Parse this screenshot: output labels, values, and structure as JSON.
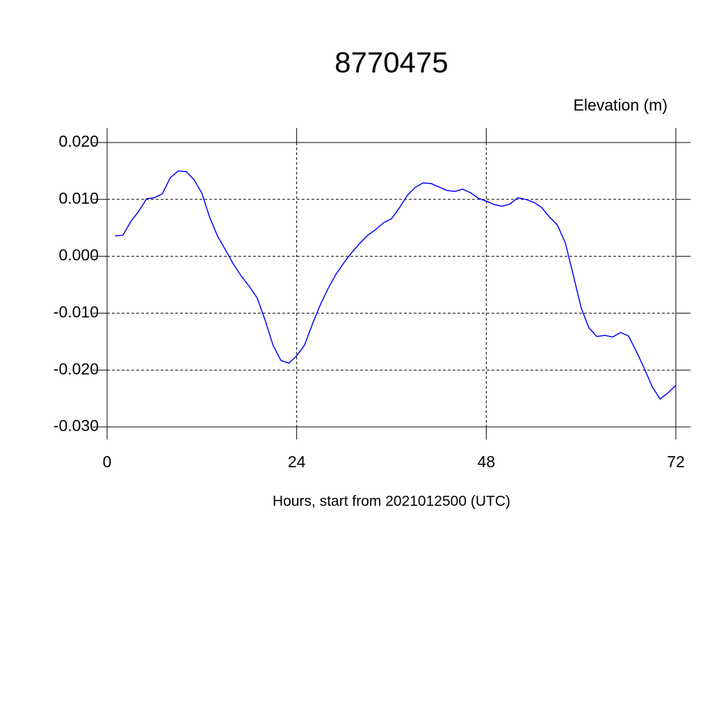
{
  "chart_data": {
    "type": "line",
    "title": "8770475",
    "ylabel": "Elevation (m)",
    "xlabel": "Hours, start from 2021012500 (UTC)",
    "x": [
      1,
      2,
      3,
      4,
      5,
      6,
      7,
      8,
      9,
      10,
      11,
      12,
      13,
      14,
      15,
      16,
      17,
      18,
      19,
      20,
      21,
      22,
      23,
      24,
      25,
      26,
      27,
      28,
      29,
      30,
      31,
      32,
      33,
      34,
      35,
      36,
      37,
      38,
      39,
      40,
      41,
      42,
      43,
      44,
      45,
      46,
      47,
      48,
      49,
      50,
      51,
      52,
      53,
      54,
      55,
      56,
      57,
      58,
      59,
      60,
      61,
      62,
      63,
      64,
      65,
      66,
      67,
      68,
      69,
      70,
      71,
      72
    ],
    "series": [
      {
        "color": "#0000ff",
        "values": [
          0.0036,
          0.0037,
          0.0061,
          0.0079,
          0.0101,
          0.0103,
          0.011,
          0.0138,
          0.015,
          0.0149,
          0.0135,
          0.0111,
          0.0068,
          0.0035,
          0.0011,
          -0.0014,
          -0.0035,
          -0.0053,
          -0.0073,
          -0.0112,
          -0.0156,
          -0.0183,
          -0.0188,
          -0.0175,
          -0.0156,
          -0.0119,
          -0.0085,
          -0.0056,
          -0.0031,
          -0.0011,
          0.0007,
          0.0023,
          0.0037,
          0.0047,
          0.0059,
          0.0066,
          0.0085,
          0.0107,
          0.0121,
          0.0129,
          0.0128,
          0.0122,
          0.0116,
          0.0114,
          0.0118,
          0.0112,
          0.0102,
          0.0097,
          0.0091,
          0.0088,
          0.0092,
          0.0103,
          0.01,
          0.0095,
          0.0086,
          0.0069,
          0.0055,
          0.0024,
          -0.0032,
          -0.009,
          -0.0126,
          -0.0141,
          -0.0139,
          -0.0142,
          -0.0134,
          -0.014,
          -0.0167,
          -0.0197,
          -0.0229,
          -0.0251,
          -0.024,
          -0.0227
        ]
      }
    ],
    "xlim": [
      0,
      72
    ],
    "xticks": [
      0,
      24,
      48,
      72
    ],
    "ylim": [
      -0.03,
      0.02
    ],
    "yticks": [
      {
        "value": -0.03,
        "label": "-0.030"
      },
      {
        "value": -0.02,
        "label": "-0.020"
      },
      {
        "value": -0.01,
        "label": "-0.010"
      },
      {
        "value": 0,
        "label": "0.000"
      },
      {
        "value": 0.01,
        "label": "0.010"
      },
      {
        "value": 0.02,
        "label": "0.020"
      }
    ],
    "grid": true
  }
}
